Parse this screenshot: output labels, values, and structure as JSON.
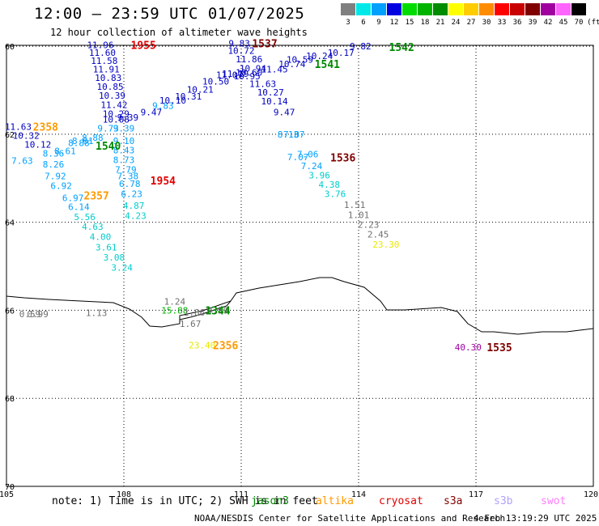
{
  "header": {
    "title": "12:00 – 23:59 UTC 01/07/2025",
    "subtitle": "12 hour collection of altimeter wave heights"
  },
  "legend": {
    "unit": "(ft)",
    "bins": [
      {
        "label": "3",
        "color": "#808080"
      },
      {
        "label": "6",
        "color": "#00e8e8"
      },
      {
        "label": "9",
        "color": "#00a0ff"
      },
      {
        "label": "12",
        "color": "#0000e0"
      },
      {
        "label": "15",
        "color": "#00dc00"
      },
      {
        "label": "18",
        "color": "#00b400"
      },
      {
        "label": "21",
        "color": "#008c00"
      },
      {
        "label": "24",
        "color": "#ffff00"
      },
      {
        "label": "27",
        "color": "#ffcc00"
      },
      {
        "label": "30",
        "color": "#ff8c00"
      },
      {
        "label": "33",
        "color": "#ff0000"
      },
      {
        "label": "36",
        "color": "#c80000"
      },
      {
        "label": "39",
        "color": "#800000"
      },
      {
        "label": "42",
        "color": "#a000a0"
      },
      {
        "label": "45",
        "color": "#ff64ff"
      },
      {
        "label": "70",
        "color": "#000000"
      }
    ]
  },
  "axes": {
    "lat_ticks": [
      "60",
      "62",
      "64",
      "66",
      "68",
      "70"
    ],
    "lon_ticks": [
      "105",
      "108",
      "111",
      "114",
      "117",
      "120"
    ],
    "lat_range": [
      59.98,
      70.0
    ],
    "lon_range": [
      105,
      120
    ]
  },
  "passes": [
    {
      "id": "1955",
      "color": "#e00000",
      "lon": 108.5,
      "lat": 59.97
    },
    {
      "id": "1537",
      "color": "#800000",
      "lon": 111.6,
      "lat": 59.93
    },
    {
      "id": "1542",
      "color": "#008800",
      "lon": 115.1,
      "lat": 60.02
    },
    {
      "id": "1541",
      "color": "#008800",
      "lon": 113.2,
      "lat": 60.4
    },
    {
      "id": "2358",
      "color": "#ff9900",
      "lon": 106.0,
      "lat": 61.83
    },
    {
      "id": "1540",
      "color": "#008800",
      "lon": 107.6,
      "lat": 62.26
    },
    {
      "id": "1536",
      "color": "#800000",
      "lon": 113.6,
      "lat": 62.53
    },
    {
      "id": "1954",
      "color": "#e00000",
      "lon": 109.0,
      "lat": 63.05
    },
    {
      "id": "2357",
      "color": "#ff9900",
      "lon": 107.3,
      "lat": 63.39
    },
    {
      "id": "1344",
      "color": "#008800",
      "lon": 110.4,
      "lat": 66.0
    },
    {
      "id": "2356",
      "color": "#ff9900",
      "lon": 110.6,
      "lat": 66.79
    },
    {
      "id": "1535",
      "color": "#800000",
      "lon": 117.6,
      "lat": 66.84
    }
  ],
  "observations": [
    {
      "v": "11.96",
      "c": "#0000c0",
      "lon": 107.4,
      "lat": 59.97
    },
    {
      "v": "11.60",
      "c": "#0000c0",
      "lon": 107.45,
      "lat": 60.15
    },
    {
      "v": "11.58",
      "c": "#0000c0",
      "lon": 107.5,
      "lat": 60.33
    },
    {
      "v": "11.91",
      "c": "#0000c0",
      "lon": 107.55,
      "lat": 60.52
    },
    {
      "v": "10.83",
      "c": "#0000c0",
      "lon": 107.6,
      "lat": 60.72
    },
    {
      "v": "10.85",
      "c": "#0000c0",
      "lon": 107.65,
      "lat": 60.92
    },
    {
      "v": "10.39",
      "c": "#0000c0",
      "lon": 107.7,
      "lat": 61.12
    },
    {
      "v": "11.42",
      "c": "#0000c0",
      "lon": 107.75,
      "lat": 61.33
    },
    {
      "v": "10.29",
      "c": "#0000c0",
      "lon": 107.8,
      "lat": 61.53
    },
    {
      "v": "10.08",
      "c": "#0000c0",
      "lon": 107.8,
      "lat": 61.66
    },
    {
      "v": "9.73",
      "c": "#00a0ff",
      "lon": 107.6,
      "lat": 61.86
    },
    {
      "v": "9.39",
      "c": "#00a0ff",
      "lon": 108.0,
      "lat": 61.86
    },
    {
      "v": "9.10",
      "c": "#00a0ff",
      "lon": 108.0,
      "lat": 62.15
    },
    {
      "v": "8.43",
      "c": "#00a0ff",
      "lon": 108.0,
      "lat": 62.36
    },
    {
      "v": "8.73",
      "c": "#00a0ff",
      "lon": 108.0,
      "lat": 62.58
    },
    {
      "v": "7.79",
      "c": "#00a0ff",
      "lon": 108.05,
      "lat": 62.8
    },
    {
      "v": "7.38",
      "c": "#00a0ff",
      "lon": 108.1,
      "lat": 62.95
    },
    {
      "v": "6.78",
      "c": "#00a0ff",
      "lon": 108.15,
      "lat": 63.12
    },
    {
      "v": "6.23",
      "c": "#00a0ff",
      "lon": 108.2,
      "lat": 63.35
    },
    {
      "v": "4.87",
      "c": "#00cccc",
      "lon": 108.25,
      "lat": 63.62
    },
    {
      "v": "4.23",
      "c": "#00cccc",
      "lon": 108.3,
      "lat": 63.85
    },
    {
      "v": "9.39",
      "c": "#0000c0",
      "lon": 108.1,
      "lat": 61.62
    },
    {
      "v": "9.47",
      "c": "#0000c0",
      "lon": 108.7,
      "lat": 61.5
    },
    {
      "v": "9.83",
      "c": "#00a0ff",
      "lon": 109.0,
      "lat": 61.35
    },
    {
      "v": "10.10",
      "c": "#0000c0",
      "lon": 109.25,
      "lat": 61.23
    },
    {
      "v": "10.31",
      "c": "#0000c0",
      "lon": 109.65,
      "lat": 61.14
    },
    {
      "v": "10.21",
      "c": "#0000c0",
      "lon": 109.95,
      "lat": 60.98
    },
    {
      "v": "10.50",
      "c": "#0000c0",
      "lon": 110.35,
      "lat": 60.8
    },
    {
      "v": "11.07",
      "c": "#0000c0",
      "lon": 110.7,
      "lat": 60.65
    },
    {
      "v": "11.19",
      "c": "#0000c0",
      "lon": 110.85,
      "lat": 60.62
    },
    {
      "v": "9.83",
      "c": "#0000c0",
      "lon": 110.95,
      "lat": 59.93
    },
    {
      "v": "10.72",
      "c": "#0000c0",
      "lon": 111.0,
      "lat": 60.1
    },
    {
      "v": "11.86",
      "c": "#0000c0",
      "lon": 111.2,
      "lat": 60.29
    },
    {
      "v": "10.94",
      "c": "#0000c0",
      "lon": 111.3,
      "lat": 60.5
    },
    {
      "v": "10.95",
      "c": "#0000c0",
      "lon": 111.15,
      "lat": 60.68
    },
    {
      "v": "10.60",
      "c": "#0000c0",
      "lon": 111.2,
      "lat": 60.6
    },
    {
      "v": "11.63",
      "c": "#0000c0",
      "lon": 111.55,
      "lat": 60.85
    },
    {
      "v": "10.27",
      "c": "#0000c0",
      "lon": 111.75,
      "lat": 61.05
    },
    {
      "v": "10.14",
      "c": "#0000c0",
      "lon": 111.85,
      "lat": 61.25
    },
    {
      "v": "9.47",
      "c": "#0000c0",
      "lon": 112.1,
      "lat": 61.5
    },
    {
      "v": "7.87",
      "c": "#00a0ff",
      "lon": 112.35,
      "lat": 62.0
    },
    {
      "v": "8.13",
      "c": "#00a0ff",
      "lon": 112.2,
      "lat": 62.0
    },
    {
      "v": "7.06",
      "c": "#00a0ff",
      "lon": 112.7,
      "lat": 62.45
    },
    {
      "v": "7.07",
      "c": "#00a0ff",
      "lon": 112.45,
      "lat": 62.52
    },
    {
      "v": "7.24",
      "c": "#00a0ff",
      "lon": 112.8,
      "lat": 62.72
    },
    {
      "v": "3.96",
      "c": "#00cccc",
      "lon": 113.0,
      "lat": 62.93
    },
    {
      "v": "4.38",
      "c": "#00cccc",
      "lon": 113.25,
      "lat": 63.14
    },
    {
      "v": "3.76",
      "c": "#00cccc",
      "lon": 113.4,
      "lat": 63.35
    },
    {
      "v": "1.51",
      "c": "#707070",
      "lon": 113.9,
      "lat": 63.6
    },
    {
      "v": "1.01",
      "c": "#707070",
      "lon": 114.0,
      "lat": 63.83
    },
    {
      "v": "2.23",
      "c": "#707070",
      "lon": 114.25,
      "lat": 64.05
    },
    {
      "v": "2.45",
      "c": "#707070",
      "lon": 114.5,
      "lat": 64.27
    },
    {
      "v": "23.30",
      "c": "#e8e800",
      "lon": 114.7,
      "lat": 64.5
    },
    {
      "v": "10.59",
      "c": "#0000c0",
      "lon": 112.5,
      "lat": 60.3
    },
    {
      "v": "10.74",
      "c": "#0000c0",
      "lon": 112.3,
      "lat": 60.4
    },
    {
      "v": "11.45",
      "c": "#0000c0",
      "lon": 111.85,
      "lat": 60.52
    },
    {
      "v": "10.24",
      "c": "#0000c0",
      "lon": 113.0,
      "lat": 60.22
    },
    {
      "v": "10.17",
      "c": "#0000c0",
      "lon": 113.55,
      "lat": 60.15
    },
    {
      "v": "9.82",
      "c": "#0000c0",
      "lon": 114.05,
      "lat": 60.0
    },
    {
      "v": "11.63",
      "c": "#0000c0",
      "lon": 105.3,
      "lat": 61.83
    },
    {
      "v": "10.32",
      "c": "#0000c0",
      "lon": 105.5,
      "lat": 62.03
    },
    {
      "v": "10.12",
      "c": "#0000c0",
      "lon": 105.8,
      "lat": 62.23
    },
    {
      "v": "8.61",
      "c": "#00a0ff",
      "lon": 106.5,
      "lat": 62.38
    },
    {
      "v": "8.36",
      "c": "#00a0ff",
      "lon": 106.2,
      "lat": 62.43
    },
    {
      "v": "7.63",
      "c": "#00a0ff",
      "lon": 105.4,
      "lat": 62.6
    },
    {
      "v": "8.26",
      "c": "#00a0ff",
      "lon": 106.2,
      "lat": 62.68
    },
    {
      "v": "7.92",
      "c": "#00a0ff",
      "lon": 106.25,
      "lat": 62.95
    },
    {
      "v": "6.92",
      "c": "#00a0ff",
      "lon": 106.4,
      "lat": 63.17
    },
    {
      "v": "6.97",
      "c": "#00a0ff",
      "lon": 106.7,
      "lat": 63.45
    },
    {
      "v": "6.14",
      "c": "#00a0ff",
      "lon": 106.85,
      "lat": 63.65
    },
    {
      "v": "5.56",
      "c": "#00cccc",
      "lon": 107.0,
      "lat": 63.88
    },
    {
      "v": "4.63",
      "c": "#00cccc",
      "lon": 107.2,
      "lat": 64.1
    },
    {
      "v": "4.00",
      "c": "#00cccc",
      "lon": 107.4,
      "lat": 64.33
    },
    {
      "v": "3.61",
      "c": "#00cccc",
      "lon": 107.55,
      "lat": 64.57
    },
    {
      "v": "3.08",
      "c": "#00cccc",
      "lon": 107.75,
      "lat": 64.8
    },
    {
      "v": "3.24",
      "c": "#00cccc",
      "lon": 107.95,
      "lat": 65.03
    },
    {
      "v": "8.88",
      "c": "#00a0ff",
      "lon": 106.85,
      "lat": 62.2
    },
    {
      "v": "8.61",
      "c": "#00a0ff",
      "lon": 106.95,
      "lat": 62.15
    },
    {
      "v": "8.88",
      "c": "#00a0ff",
      "lon": 107.2,
      "lat": 62.08
    },
    {
      "v": "0.59",
      "c": "#707070",
      "lon": 105.6,
      "lat": 66.08
    },
    {
      "v": "0.99",
      "c": "#707070",
      "lon": 105.8,
      "lat": 66.08
    },
    {
      "v": "1.13",
      "c": "#707070",
      "lon": 107.3,
      "lat": 66.06
    },
    {
      "v": "1.24",
      "c": "#707070",
      "lon": 109.3,
      "lat": 65.8
    },
    {
      "v": "15.88",
      "c": "#00b400",
      "lon": 109.3,
      "lat": 66.0
    },
    {
      "v": "1.86",
      "c": "#707070",
      "lon": 109.8,
      "lat": 66.05
    },
    {
      "v": "0.59",
      "c": "#707070",
      "lon": 110.4,
      "lat": 66.0
    },
    {
      "v": "1.67",
      "c": "#707070",
      "lon": 109.7,
      "lat": 66.3
    },
    {
      "v": "23.40",
      "c": "#e8e800",
      "lon": 110.0,
      "lat": 66.79
    },
    {
      "v": "40.30",
      "c": "#a000a0",
      "lon": 116.8,
      "lat": 66.84
    }
  ],
  "footer": {
    "note": "note: 1) Time is in UTC; 2) SWH is in feet",
    "satellites": [
      {
        "name": "jason3",
        "color": "#008800"
      },
      {
        "name": "altika",
        "color": "#ff9900"
      },
      {
        "name": "cryosat",
        "color": "#e00000"
      },
      {
        "name": "s3a",
        "color": "#800000"
      },
      {
        "name": "s3b",
        "color": "#b0a0ff"
      },
      {
        "name": "swot",
        "color": "#ff80ff"
      }
    ],
    "credit": "NOAA/NESDIS Center for Satellite Applications and Research",
    "timestamp": "4 Feb 13:19:29 UTC 2025"
  }
}
